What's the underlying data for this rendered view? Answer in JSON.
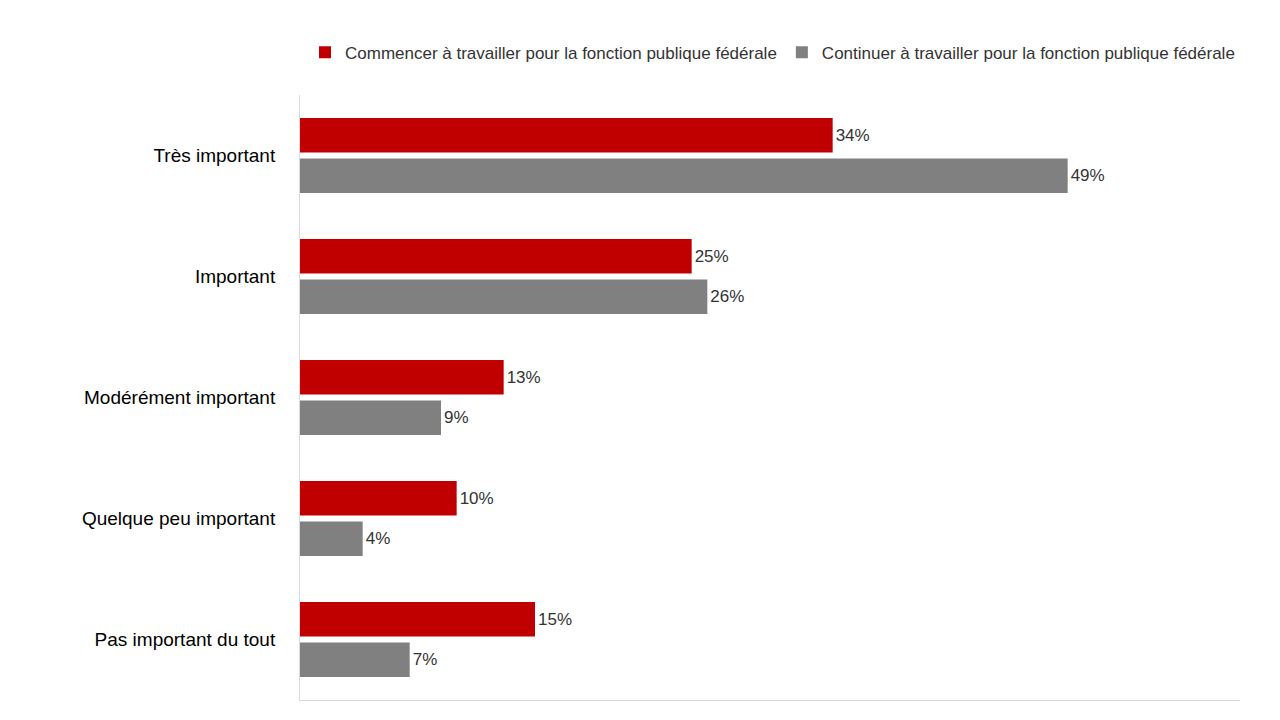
{
  "chart_data": {
    "type": "bar",
    "orientation": "horizontal",
    "categories": [
      "Très important",
      "Important",
      "Modérément important",
      "Quelque peu important",
      "Pas important du tout"
    ],
    "series": [
      {
        "name": "Commencer à travailler pour la fonction publique fédérale",
        "color": "#c00000",
        "values": [
          34,
          25,
          13,
          10,
          15
        ],
        "value_labels": [
          "34%",
          "25%",
          "13%",
          "10%",
          "15%"
        ]
      },
      {
        "name": "Continuer à travailler pour la fonction publique fédérale",
        "color": "#808080",
        "values": [
          49,
          26,
          9,
          4,
          7
        ],
        "value_labels": [
          "49%",
          "26%",
          "9%",
          "4%",
          "7%"
        ]
      }
    ],
    "xlim": [
      0,
      60
    ],
    "grid": false,
    "legend": "top",
    "data_labels": true,
    "tick_labels": "y"
  }
}
